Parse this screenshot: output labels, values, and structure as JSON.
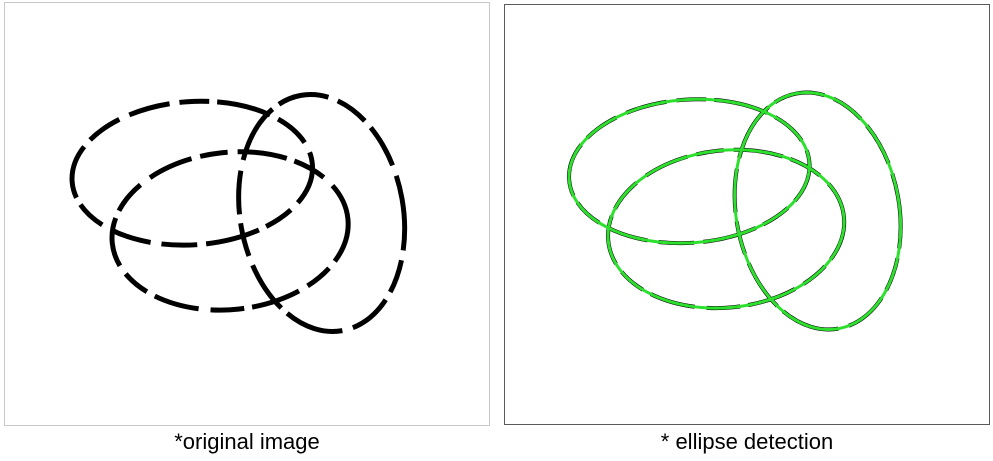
{
  "panels": {
    "original": {
      "caption": "*original image",
      "stroke_color": "#000000"
    },
    "detection": {
      "caption": "* ellipse detection",
      "stroke_color": "#000000",
      "fit_color": "#2ee02e"
    }
  }
}
